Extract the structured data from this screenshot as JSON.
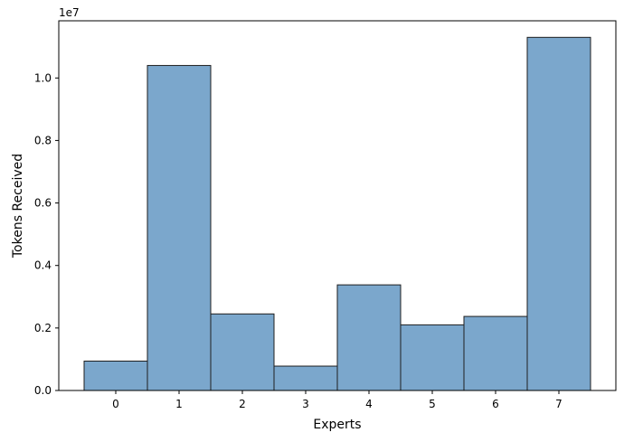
{
  "chart_data": {
    "type": "bar",
    "categories": [
      "0",
      "1",
      "2",
      "3",
      "4",
      "5",
      "6",
      "7"
    ],
    "values": [
      940000,
      10400000,
      2450000,
      780000,
      3380000,
      2100000,
      2370000,
      11300000
    ],
    "title": "",
    "xlabel": "Experts",
    "ylabel": "Tokens Received",
    "ylim": [
      0,
      11830000
    ],
    "y_ticks": [
      0.0,
      0.2,
      0.4,
      0.6,
      0.8,
      1.0
    ],
    "y_tick_labels": [
      "0.0",
      "0.2",
      "0.4",
      "0.6",
      "0.8",
      "1.0"
    ],
    "y_scale_label": "1e7",
    "grid": false,
    "bar_color": "#7ba7cc",
    "edge_color": "#1f1f1f"
  }
}
